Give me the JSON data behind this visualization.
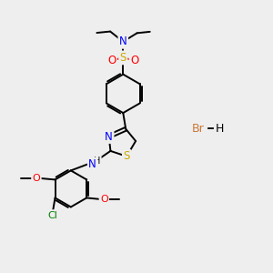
{
  "bg_color": "#eeeeee",
  "fig_size": [
    3.0,
    3.0
  ],
  "dpi": 100,
  "xlim": [
    0,
    10
  ],
  "ylim": [
    0,
    10
  ]
}
